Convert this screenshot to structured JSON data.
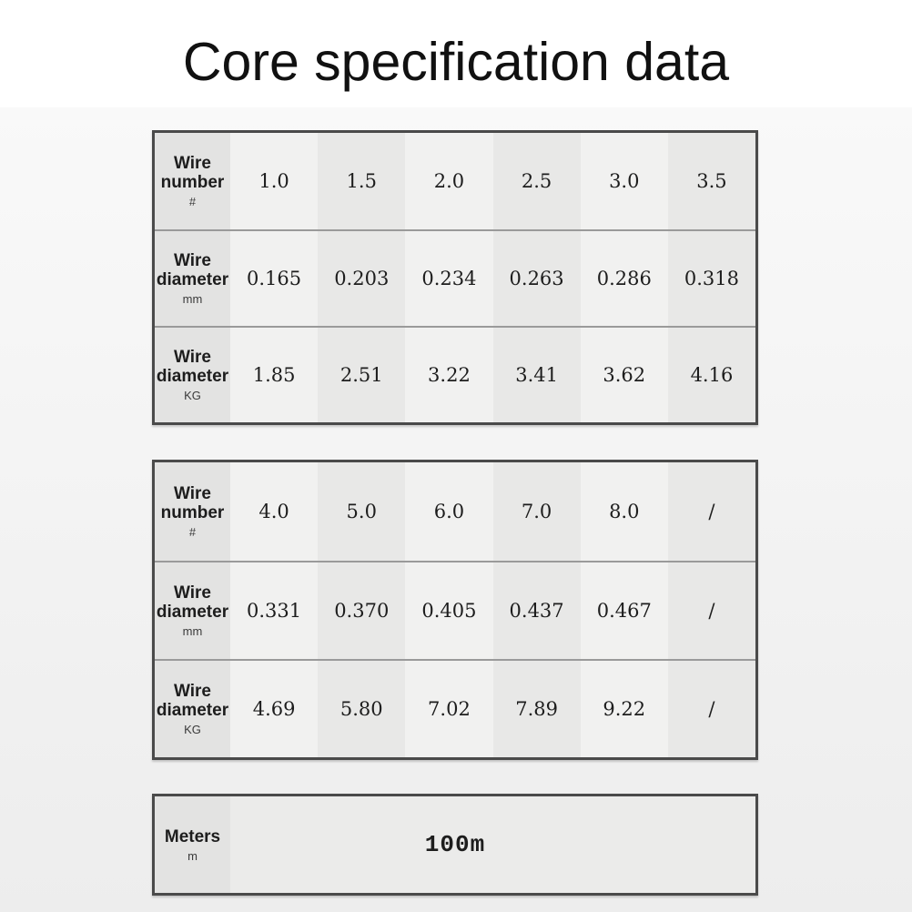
{
  "page": {
    "title": "Core specification data"
  },
  "colors": {
    "page_bg": "#ffffff",
    "panel_top": "#f9f9f9",
    "panel_bottom": "#ededed",
    "title_color": "#111111",
    "table_border": "#4a4a4a",
    "row_divider": "#9a9a9a",
    "header_cell_bg": "#e3e3e2",
    "cell_bg_light": "#f1f1f0",
    "cell_bg_dark": "#e8e8e7",
    "meters_value_bg": "#ebebea",
    "text_primary": "#1d1d1d",
    "text_unit": "#3a3a3a"
  },
  "tables": [
    {
      "rows": [
        {
          "label": "Wire number",
          "unit": "#",
          "values": [
            "1.0",
            "1.5",
            "2.0",
            "2.5",
            "3.0",
            "3.5"
          ]
        },
        {
          "label": "Wire diameter",
          "unit": "mm",
          "values": [
            "0.165",
            "0.203",
            "0.234",
            "0.263",
            "0.286",
            "0.318"
          ]
        },
        {
          "label": "Wire diameter",
          "unit": "KG",
          "values": [
            "1.85",
            "2.51",
            "3.22",
            "3.41",
            "3.62",
            "4.16"
          ]
        }
      ]
    },
    {
      "rows": [
        {
          "label": "Wire number",
          "unit": "#",
          "values": [
            "4.0",
            "5.0",
            "6.0",
            "7.0",
            "8.0",
            "/"
          ]
        },
        {
          "label": "Wire diameter",
          "unit": "mm",
          "values": [
            "0.331",
            "0.370",
            "0.405",
            "0.437",
            "0.467",
            "/"
          ]
        },
        {
          "label": "Wire diameter",
          "unit": "KG",
          "values": [
            "4.69",
            "5.80",
            "7.02",
            "7.89",
            "9.22",
            "/"
          ]
        }
      ]
    },
    {
      "rows": [
        {
          "label": "Meters",
          "unit": "m",
          "span_value": "100m"
        }
      ]
    }
  ]
}
